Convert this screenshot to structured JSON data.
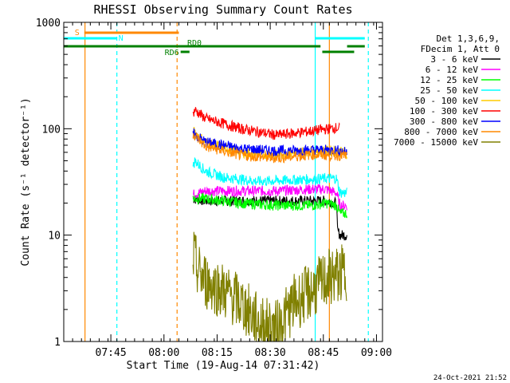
{
  "chart_data": {
    "type": "line",
    "title": "RHESSI Observing Summary Count Rates",
    "xlabel": "Start Time (19-Aug-14 07:31:42)",
    "ylabel": "Count Rate (s⁻¹ detector⁻¹)",
    "y_scale": "log",
    "ylim": [
      1,
      1000
    ],
    "xlim_minutes": [
      0,
      90
    ],
    "x_tick_labels": [
      "07:45",
      "08:00",
      "08:15",
      "08:30",
      "08:45",
      "09:00"
    ],
    "x_tick_minutes": [
      13.3,
      28.3,
      43.3,
      58.3,
      73.3,
      88.3
    ],
    "y_tick_labels": [
      "1",
      "10",
      "100",
      "1000"
    ],
    "y_tick_values": [
      1,
      10,
      100,
      1000
    ],
    "legend_header": [
      "Det 1,3,6,9,",
      "FDecim 1, Att 0"
    ],
    "series": [
      {
        "name": "3 - 6 keV",
        "color": "#000000",
        "data": [
          [
            36.5,
            22
          ],
          [
            40,
            21
          ],
          [
            50,
            21
          ],
          [
            60,
            21
          ],
          [
            70,
            21
          ],
          [
            74,
            21
          ],
          [
            77,
            20
          ],
          [
            77.3,
            11
          ],
          [
            78,
            10
          ],
          [
            80,
            10
          ]
        ]
      },
      {
        "name": "6 - 12 keV",
        "color": "#ff00ff",
        "data": [
          [
            36.5,
            24
          ],
          [
            40,
            26
          ],
          [
            50,
            26
          ],
          [
            60,
            26
          ],
          [
            70,
            27
          ],
          [
            74,
            27
          ],
          [
            77,
            25
          ],
          [
            78,
            19
          ],
          [
            80,
            19
          ]
        ]
      },
      {
        "name": "12 - 25 keV",
        "color": "#00ff00",
        "data": [
          [
            36.5,
            22
          ],
          [
            40,
            22
          ],
          [
            50,
            20
          ],
          [
            60,
            19
          ],
          [
            70,
            19
          ],
          [
            74,
            20
          ],
          [
            77,
            19
          ],
          [
            78,
            16
          ],
          [
            80,
            16
          ]
        ]
      },
      {
        "name": "25 - 50 keV",
        "color": "#00ffff",
        "data": [
          [
            36.5,
            43
          ],
          [
            37,
            50
          ],
          [
            40,
            40
          ],
          [
            45,
            35
          ],
          [
            55,
            32
          ],
          [
            65,
            33
          ],
          [
            74,
            34
          ],
          [
            77,
            34
          ],
          [
            78,
            25
          ],
          [
            80,
            25
          ]
        ]
      },
      {
        "name": "50 - 100 keV",
        "color": "#ffcc00",
        "data": [
          [
            36.5,
            95
          ],
          [
            40,
            75
          ],
          [
            50,
            60
          ],
          [
            60,
            57
          ],
          [
            70,
            62
          ],
          [
            77,
            62
          ],
          [
            80,
            58
          ]
        ]
      },
      {
        "name": "100 - 300 keV",
        "color": "#ff0000",
        "data": [
          [
            36.5,
            135
          ],
          [
            37,
            150
          ],
          [
            40,
            125
          ],
          [
            50,
            100
          ],
          [
            60,
            87
          ],
          [
            70,
            95
          ],
          [
            77,
            102
          ],
          [
            78,
            100
          ]
        ]
      },
      {
        "name": "300 - 800 keV",
        "color": "#0000ff",
        "data": [
          [
            36.5,
            90
          ],
          [
            40,
            75
          ],
          [
            50,
            65
          ],
          [
            60,
            62
          ],
          [
            70,
            63
          ],
          [
            77,
            63
          ],
          [
            80,
            60
          ]
        ]
      },
      {
        "name": "800 - 7000 keV",
        "color": "#ff8800",
        "data": [
          [
            36.5,
            90
          ],
          [
            40,
            68
          ],
          [
            50,
            56
          ],
          [
            60,
            53
          ],
          [
            70,
            57
          ],
          [
            77,
            56
          ],
          [
            80,
            56
          ]
        ]
      },
      {
        "name": "7000 - 15000 keV",
        "color": "#808000",
        "data": [
          [
            36.5,
            6.5
          ],
          [
            38,
            4.5
          ],
          [
            40,
            3.7
          ],
          [
            45,
            3
          ],
          [
            50,
            2.3
          ],
          [
            55,
            1.5
          ],
          [
            60,
            1.3
          ],
          [
            65,
            2.3
          ],
          [
            70,
            3
          ],
          [
            75,
            4
          ],
          [
            80,
            4.5
          ]
        ]
      }
    ],
    "flags": [
      {
        "label": "S",
        "color": "#ff8800",
        "x_start": 5.8,
        "x_end": 32.5,
        "level": "top"
      },
      {
        "label": "N",
        "color": "#00ffff",
        "x_start": 0,
        "x_end": 15,
        "level": "upper"
      },
      {
        "label": "N",
        "color": "#00ffff",
        "x_start": 71,
        "x_end": 85,
        "level": "upper"
      },
      {
        "label": "RD0",
        "color": "#008000",
        "x_start": 0,
        "x_end": 72.5,
        "level": "middle"
      },
      {
        "label": "RD0",
        "color": "#008000",
        "x_start": 80,
        "x_end": 85,
        "level": "middle"
      },
      {
        "label": "RD6",
        "color": "#008000",
        "x_start": 33,
        "x_end": 35.5,
        "level": "lower"
      },
      {
        "label": "RD6",
        "color": "#008000",
        "x_start": 73,
        "x_end": 82,
        "level": "lower"
      }
    ],
    "vertical_lines": [
      {
        "x": 6,
        "color": "#ff8800",
        "style": "solid"
      },
      {
        "x": 15,
        "color": "#00ffff",
        "style": "dashed"
      },
      {
        "x": 32,
        "color": "#ff8800",
        "style": "dashed"
      },
      {
        "x": 71,
        "color": "#00ffff",
        "style": "solid"
      },
      {
        "x": 75,
        "color": "#ff8800",
        "style": "solid"
      },
      {
        "x": 86,
        "color": "#00ffff",
        "style": "dashed"
      }
    ],
    "grid": false,
    "legend_position": "right"
  },
  "footer_timestamp": "24-Oct-2021 21:52"
}
